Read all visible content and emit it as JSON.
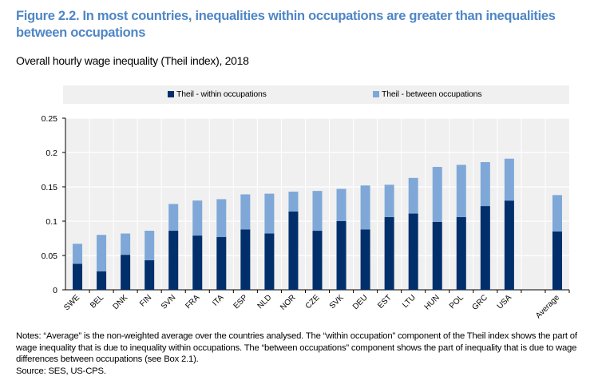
{
  "figure": {
    "title": "Figure 2.2. In most countries, inequalities within occupations are greater than inequalities between occupations",
    "subtitle": "Overall hourly wage inequality (Theil index), 2018",
    "notes": "Notes: “Average” is the non-weighted average over the countries analysed. The “within occupation” component of the Theil index shows the part of wage inequality that is due to inequality within occupations. The “between occupations” component shows the part of inequality that is due to wage differences between occupations (see Box 2.1).",
    "source": "Source: SES, US-CPS."
  },
  "colors": {
    "within": "#002F6C",
    "between": "#7FA8D8",
    "plot_bg": "#F0F0F0",
    "title": "#4F86C6"
  },
  "chart_data": {
    "type": "bar",
    "stacked": true,
    "title": "Overall hourly wage inequality (Theil index), 2018",
    "xlabel": "",
    "ylabel": "",
    "ylim": [
      0,
      0.25
    ],
    "yticks": [
      "0",
      "0.05",
      "0.1",
      "0.15",
      "0.2",
      "0.25"
    ],
    "ytick_values": [
      0,
      0.05,
      0.1,
      0.15,
      0.2,
      0.25
    ],
    "grid": true,
    "legend_position": "top",
    "categories": [
      "SWE",
      "BEL",
      "DNK",
      "FIN",
      "SVN",
      "FRA",
      "ITA",
      "ESP",
      "NLD",
      "NOR",
      "CZE",
      "SVK",
      "DEU",
      "EST",
      "LTU",
      "HUN",
      "POL",
      "GRC",
      "USA",
      "",
      "Average"
    ],
    "series": [
      {
        "name": "Theil - within occupations",
        "values": [
          0.038,
          0.027,
          0.051,
          0.043,
          0.086,
          0.079,
          0.077,
          0.088,
          0.082,
          0.114,
          0.086,
          0.1,
          0.088,
          0.106,
          0.111,
          0.099,
          0.106,
          0.122,
          0.13,
          null,
          0.085
        ]
      },
      {
        "name": "Theil - between occupations",
        "values": [
          0.029,
          0.053,
          0.031,
          0.043,
          0.039,
          0.051,
          0.055,
          0.051,
          0.058,
          0.029,
          0.058,
          0.047,
          0.064,
          0.047,
          0.052,
          0.08,
          0.076,
          0.064,
          0.061,
          null,
          0.053
        ]
      }
    ]
  }
}
